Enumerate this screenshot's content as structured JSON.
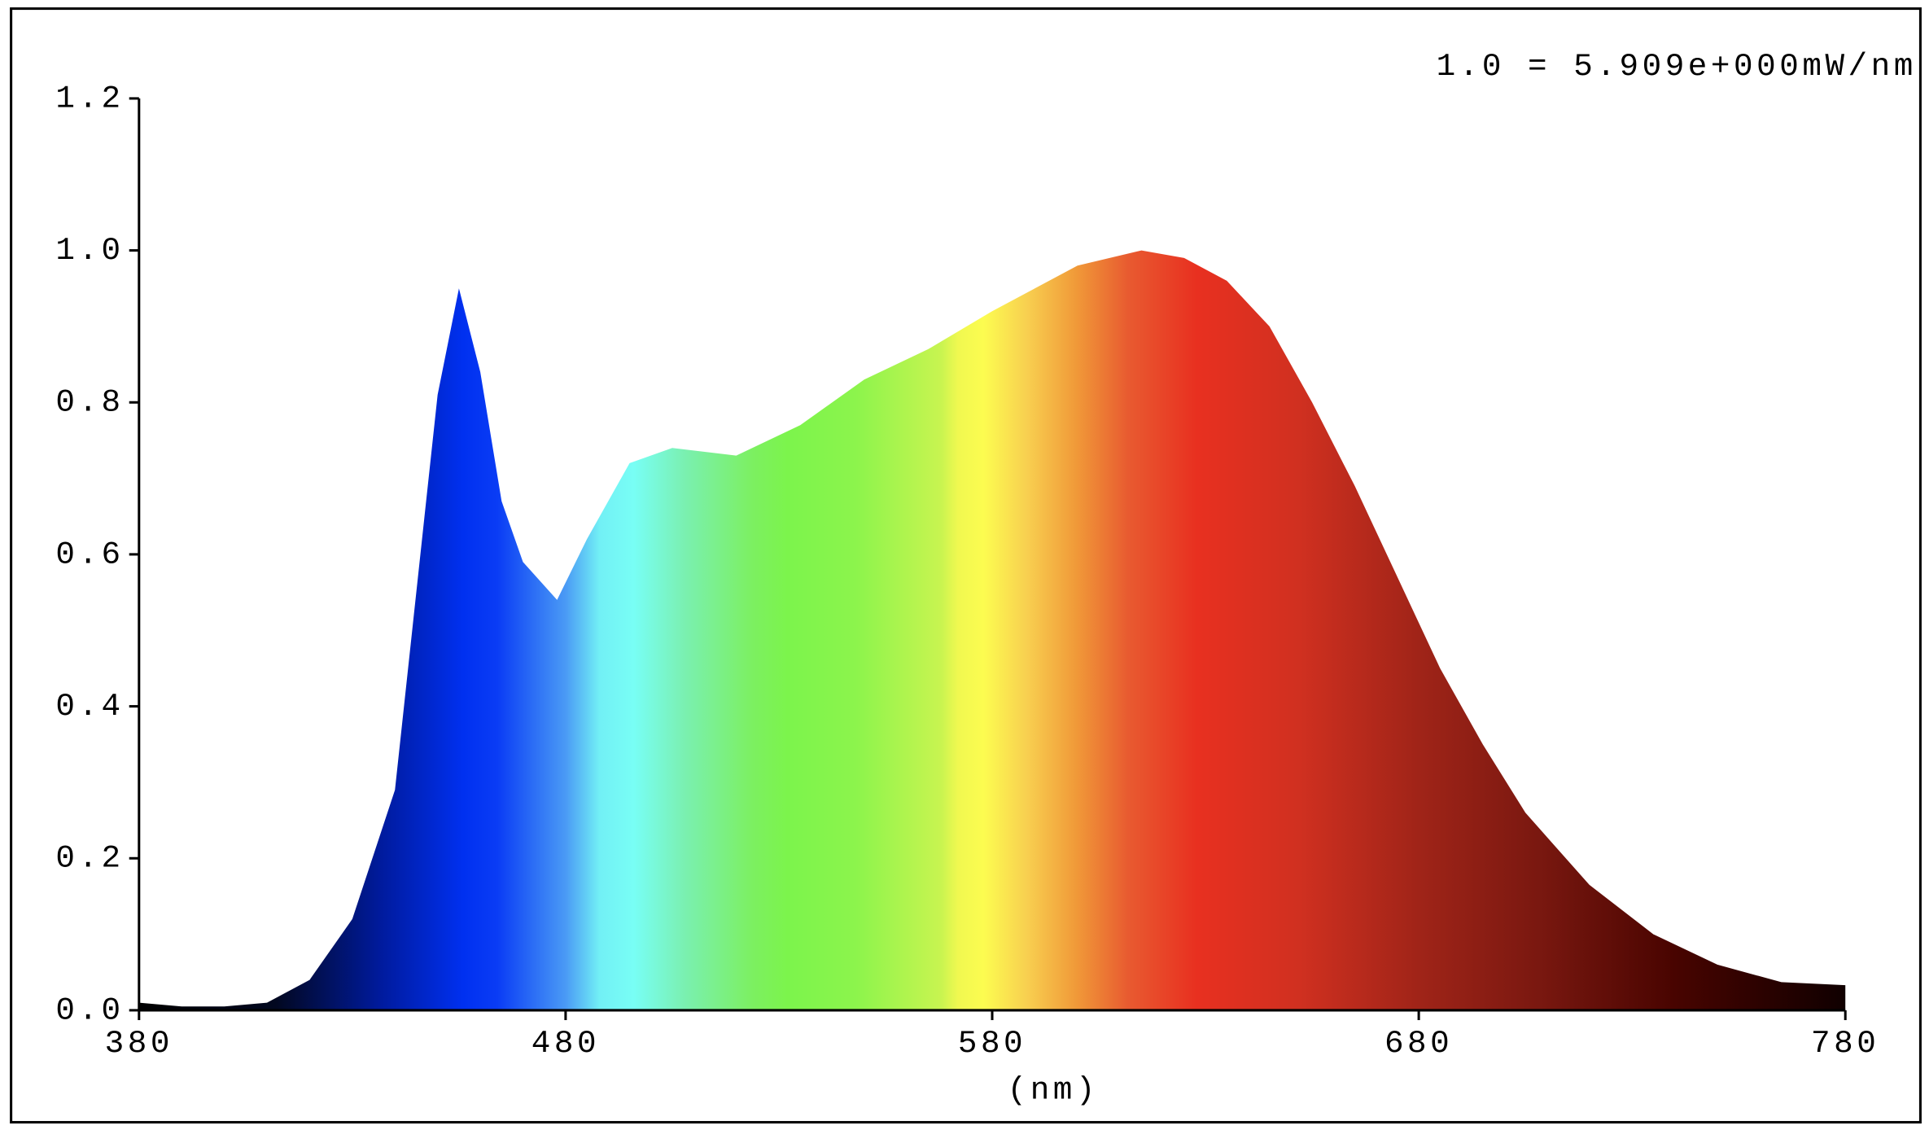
{
  "chart_data": {
    "type": "area",
    "annotation": "1.0 = 5.909e+000mW/nm",
    "x_label": "(nm)",
    "x": [
      380,
      390,
      400,
      410,
      420,
      430,
      440,
      445,
      450,
      455,
      460,
      465,
      470,
      478,
      485,
      495,
      505,
      520,
      535,
      550,
      565,
      580,
      600,
      615,
      625,
      635,
      645,
      655,
      665,
      675,
      685,
      695,
      705,
      720,
      735,
      750,
      765,
      780
    ],
    "values": [
      0.01,
      0.005,
      0.005,
      0.01,
      0.04,
      0.12,
      0.29,
      0.55,
      0.81,
      0.95,
      0.84,
      0.67,
      0.59,
      0.54,
      0.62,
      0.72,
      0.74,
      0.73,
      0.77,
      0.83,
      0.87,
      0.92,
      0.98,
      1.0,
      0.99,
      0.96,
      0.9,
      0.8,
      0.69,
      0.57,
      0.45,
      0.35,
      0.26,
      0.165,
      0.1,
      0.06,
      0.037,
      0.033
    ],
    "xlim": [
      380,
      780
    ],
    "xticks": [
      380,
      480,
      580,
      680,
      780
    ],
    "ylim": [
      0,
      1.2
    ],
    "yticks": [
      {
        "value": 0,
        "label": "0.0"
      },
      {
        "value": 0.2,
        "label": "0.2"
      },
      {
        "value": 0.4,
        "label": "0.4"
      },
      {
        "value": 0.6,
        "label": "0.6"
      },
      {
        "value": 0.8,
        "label": "0.8"
      },
      {
        "value": 1.0,
        "label": "1.0"
      },
      {
        "value": 1.2,
        "label": "1.2"
      }
    ]
  }
}
